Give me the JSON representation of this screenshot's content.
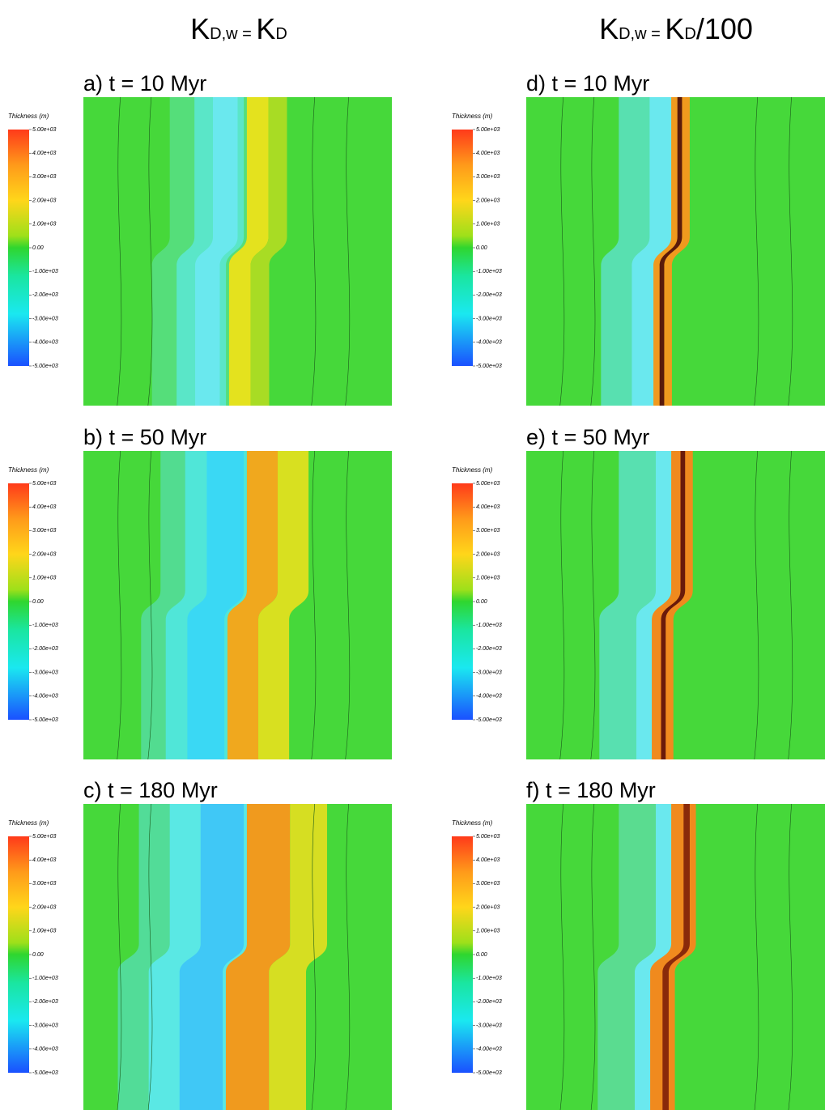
{
  "columns": [
    {
      "header": [
        {
          "text": "K"
        },
        {
          "text": "D,w",
          "sub": true
        },
        {
          "text": " = ",
          "sub": true
        },
        {
          "text": "K"
        },
        {
          "text": "D",
          "sub": true
        }
      ],
      "panels": [
        "a) t = 10 Myr",
        "b) t = 50 Myr",
        "c) t = 180 Myr"
      ]
    },
    {
      "header": [
        {
          "text": "K"
        },
        {
          "text": "D,w",
          "sub": true
        },
        {
          "text": " = ",
          "sub": true
        },
        {
          "text": "K"
        },
        {
          "text": "D",
          "sub": true
        },
        {
          "text": "/100"
        }
      ],
      "panels": [
        "d) t = 10 Myr",
        "e) t = 50 Myr",
        "f) t = 180 Myr"
      ]
    }
  ],
  "colorbar": {
    "title": "Thickness (m)",
    "ticks": [
      {
        "value": 5000,
        "label": "5.00e+03"
      },
      {
        "value": 4000,
        "label": "4.00e+03"
      },
      {
        "value": 3000,
        "label": "3.00e+03"
      },
      {
        "value": 2000,
        "label": "2.00e+03"
      },
      {
        "value": 1000,
        "label": "1.00e+03"
      },
      {
        "value": 0,
        "label": "0.00"
      },
      {
        "value": -1000,
        "label": "-1.00e+03"
      },
      {
        "value": -2000,
        "label": "-2.00e+03"
      },
      {
        "value": -3000,
        "label": "-3.00e+03"
      },
      {
        "value": -4000,
        "label": "-4.00e+03"
      },
      {
        "value": -5000,
        "label": "-5.00e+03"
      }
    ]
  }
}
